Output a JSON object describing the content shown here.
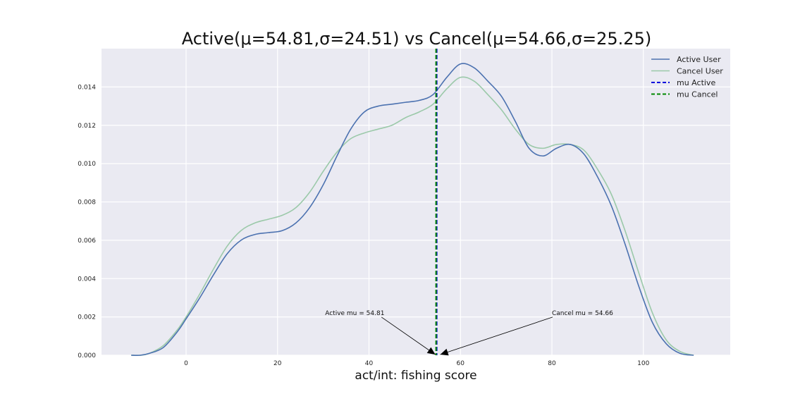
{
  "chart_data": {
    "type": "line",
    "title": "Active(μ=54.81,σ=24.51) vs Cancel(μ=54.66,σ=25.25)",
    "xlabel": "act/int: fishing score",
    "ylabel": "",
    "xlim": [
      -18.5,
      119
    ],
    "ylim": [
      0,
      0.016
    ],
    "xticks": [
      0,
      20,
      40,
      60,
      80,
      100
    ],
    "yticks": [
      0.0,
      0.002,
      0.004,
      0.006,
      0.008,
      0.01,
      0.012,
      0.014
    ],
    "grid": true,
    "legend_position": "top-right",
    "series": [
      {
        "name": "Active User",
        "color": "#4c72b0",
        "style": "solid",
        "x": [
          -12,
          -10,
          -8,
          -5,
          -2,
          0,
          3,
          6,
          9,
          12,
          15,
          18,
          21,
          24,
          27,
          30,
          33,
          36,
          39,
          42,
          45,
          48,
          51,
          54,
          57,
          60,
          63,
          66,
          69,
          72,
          75,
          78,
          81,
          84,
          87,
          90,
          93,
          96,
          99,
          102,
          105,
          108,
          111
        ],
        "y": [
          0.0,
          0.0,
          0.0001,
          0.0004,
          0.0012,
          0.0019,
          0.003,
          0.0042,
          0.0053,
          0.006,
          0.0063,
          0.0064,
          0.0065,
          0.0069,
          0.0077,
          0.0089,
          0.0104,
          0.0118,
          0.0127,
          0.013,
          0.0131,
          0.0132,
          0.0133,
          0.0136,
          0.0145,
          0.0152,
          0.015,
          0.0143,
          0.0135,
          0.0122,
          0.0108,
          0.0104,
          0.0108,
          0.011,
          0.0105,
          0.0093,
          0.0078,
          0.0058,
          0.0036,
          0.0017,
          0.0006,
          0.0001,
          0.0
        ]
      },
      {
        "name": "Cancel User",
        "color": "#9bc9a9",
        "style": "solid",
        "x": [
          -12,
          -10,
          -8,
          -5,
          -2,
          0,
          3,
          6,
          9,
          12,
          15,
          18,
          21,
          24,
          27,
          30,
          33,
          36,
          39,
          42,
          45,
          48,
          51,
          54,
          57,
          60,
          63,
          66,
          69,
          72,
          75,
          78,
          81,
          84,
          87,
          90,
          93,
          96,
          99,
          102,
          105,
          108,
          111
        ],
        "y": [
          0.0,
          0.0,
          0.0001,
          0.0005,
          0.0013,
          0.002,
          0.0032,
          0.0045,
          0.0057,
          0.0065,
          0.0069,
          0.0071,
          0.0073,
          0.0077,
          0.0085,
          0.0096,
          0.0106,
          0.0113,
          0.0116,
          0.0118,
          0.012,
          0.0124,
          0.0127,
          0.0131,
          0.0139,
          0.0145,
          0.0143,
          0.0136,
          0.0128,
          0.0118,
          0.011,
          0.0108,
          0.011,
          0.011,
          0.0107,
          0.0097,
          0.0084,
          0.0065,
          0.0043,
          0.0022,
          0.0008,
          0.0002,
          0.0
        ]
      },
      {
        "name": "mu Active",
        "color": "#0000dd",
        "style": "dashed",
        "vline_x": 54.81
      },
      {
        "name": "mu Cancel",
        "color": "#008800",
        "style": "dashed",
        "vline_x": 54.66
      }
    ],
    "annotations": [
      {
        "text": "Active mu = 54.81",
        "x": 30.4,
        "y": 0.0021,
        "arrow_to": [
          54.81,
          0.0
        ]
      },
      {
        "text": "Cancel mu = 54.66",
        "x": 80.0,
        "y": 0.0021,
        "arrow_to": [
          54.66,
          0.0
        ]
      }
    ]
  }
}
